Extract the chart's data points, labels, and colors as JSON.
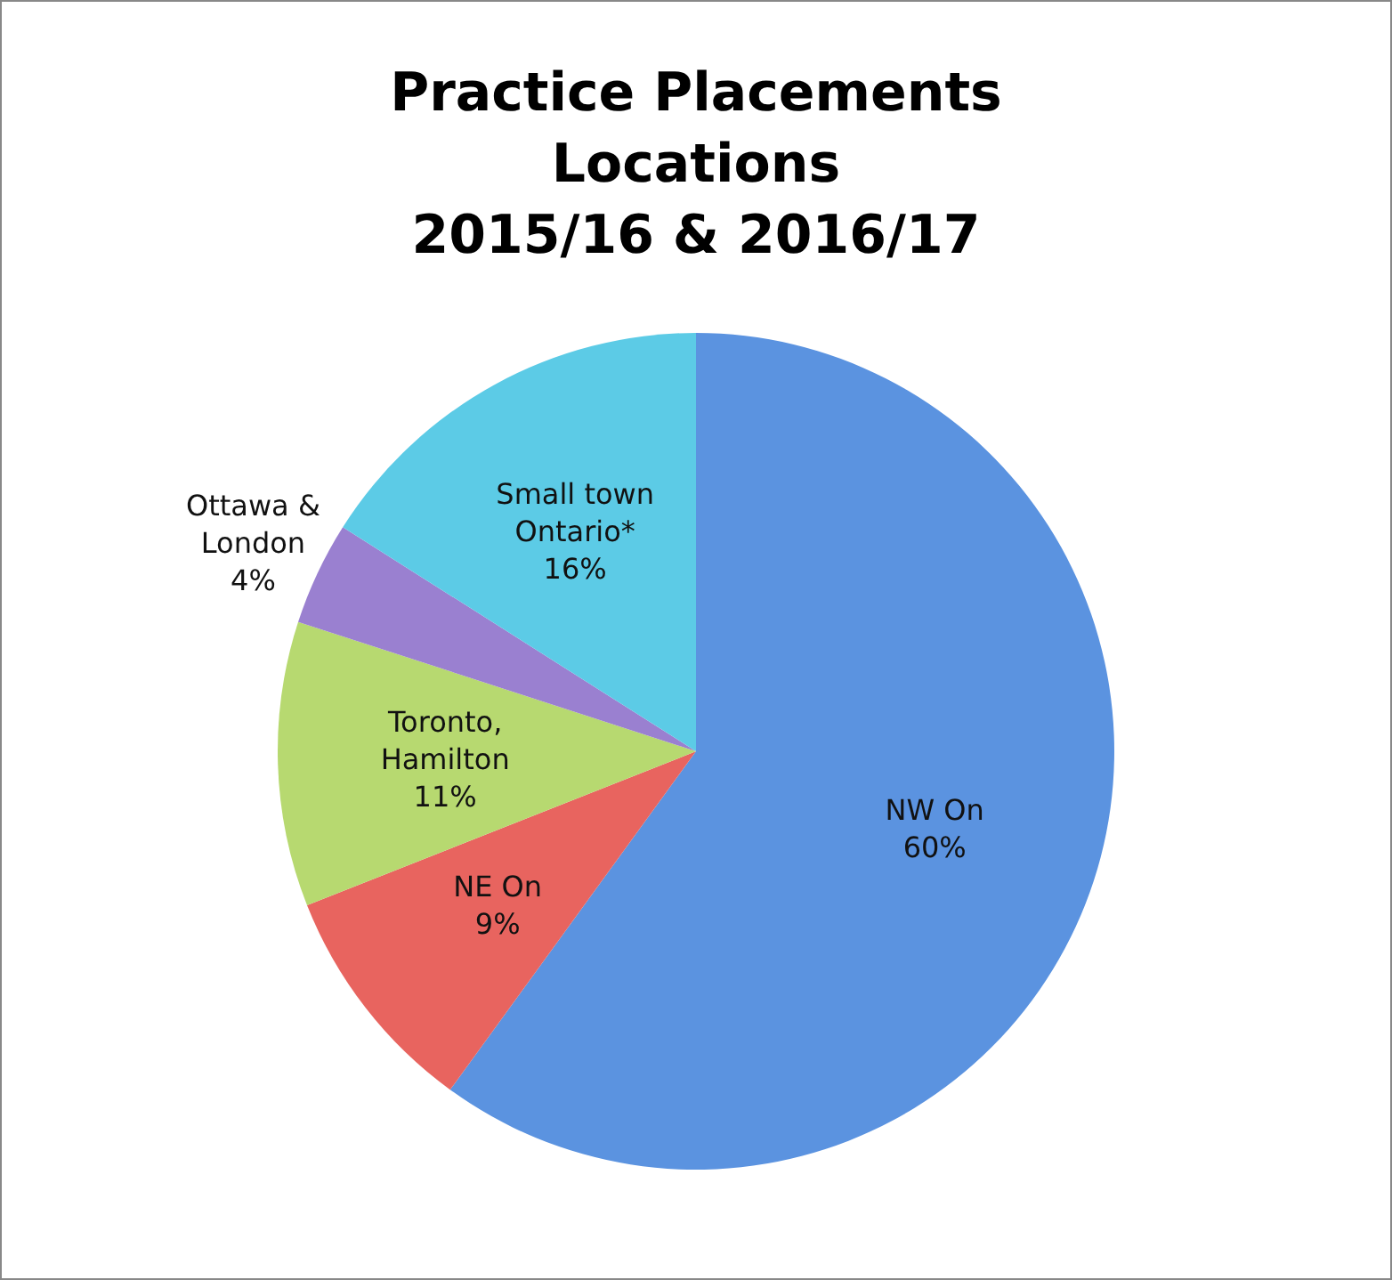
{
  "chart_data": {
    "type": "pie",
    "title": "Practice Placements\nLocations\n2015/16 & 2016/17",
    "categories": [
      "NW On",
      "NE On",
      "Toronto, Hamilton",
      "Ottawa & London",
      "Small town Ontario*"
    ],
    "values": [
      60,
      9,
      11,
      4,
      16
    ],
    "colors": [
      "#5b93e0",
      "#e8645f",
      "#b7d970",
      "#9a80d0",
      "#5ccbe6"
    ],
    "value_labels": [
      "60%",
      "9%",
      "11%",
      "4%",
      "16%"
    ]
  }
}
